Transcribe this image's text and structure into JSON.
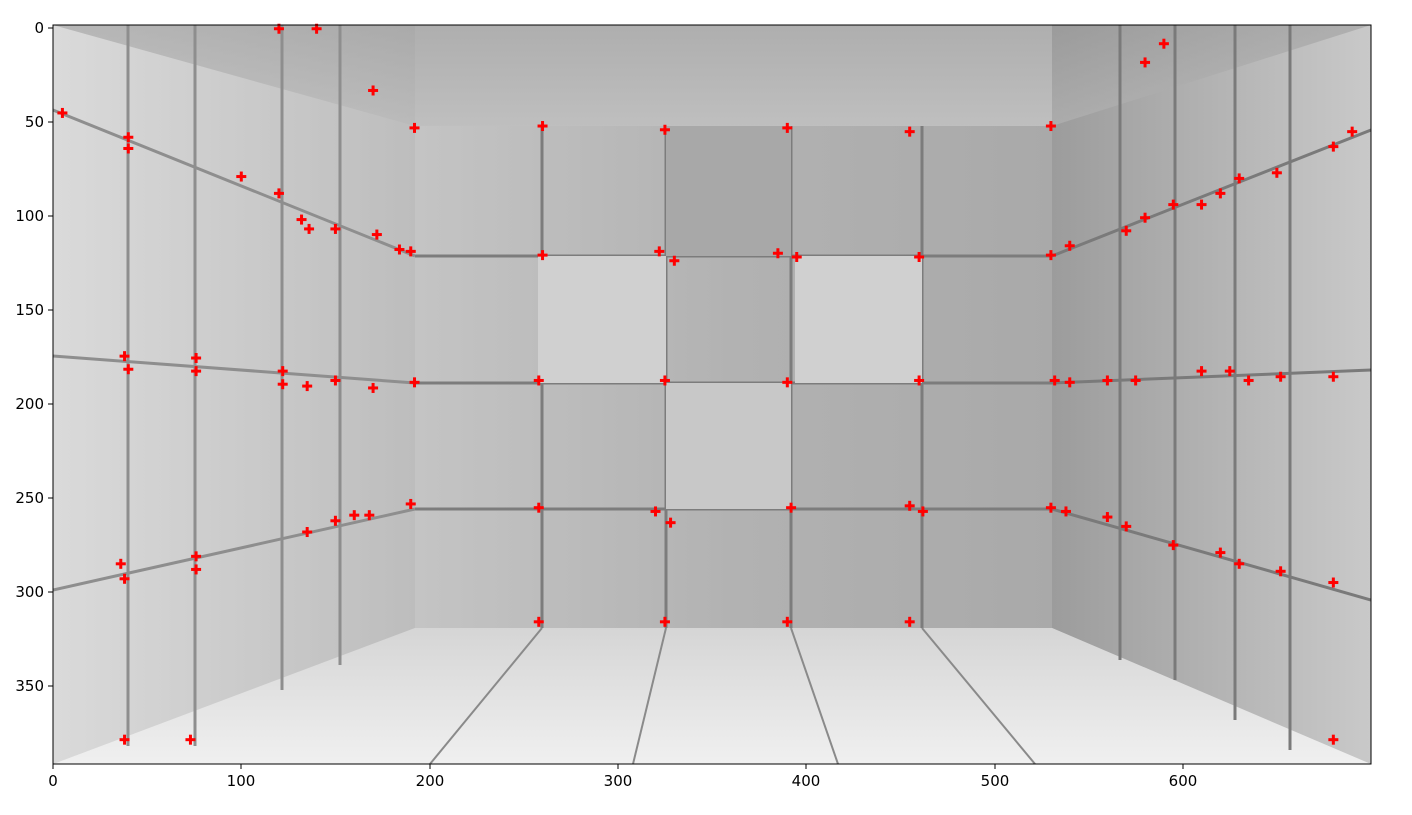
{
  "figure": {
    "x_ticks": [
      "0",
      "100",
      "200",
      "300",
      "400",
      "500",
      "600"
    ],
    "y_ticks": [
      "0",
      "50",
      "100",
      "150",
      "200",
      "250",
      "300",
      "350"
    ],
    "marker_color": "#ff0000",
    "image_subject": "grayscale render of a box-shaped room whose walls are tiled with square panels, with red corner-detection markers"
  },
  "chart_data": {
    "type": "scatter",
    "title": "",
    "xlabel": "",
    "ylabel": "",
    "xlim": [
      0,
      700
    ],
    "ylim": [
      395,
      0
    ],
    "x_ticks": [
      0,
      100,
      200,
      300,
      400,
      500,
      600
    ],
    "y_ticks": [
      0,
      50,
      100,
      150,
      200,
      250,
      300,
      350
    ],
    "series": [
      {
        "color": "#ff0000",
        "points": [
          [
            5,
            47
          ],
          [
            40,
            60
          ],
          [
            40,
            66
          ],
          [
            100,
            81
          ],
          [
            120,
            90
          ],
          [
            132,
            104
          ],
          [
            136,
            109
          ],
          [
            150,
            109
          ],
          [
            172,
            112
          ],
          [
            184,
            120
          ],
          [
            190,
            121
          ],
          [
            38,
            177
          ],
          [
            40,
            184
          ],
          [
            76,
            178
          ],
          [
            76,
            185
          ],
          [
            122,
            185
          ],
          [
            122,
            192
          ],
          [
            135,
            193
          ],
          [
            150,
            190
          ],
          [
            170,
            194
          ],
          [
            192,
            191
          ],
          [
            36,
            288
          ],
          [
            38,
            296
          ],
          [
            76,
            284
          ],
          [
            76,
            291
          ],
          [
            135,
            271
          ],
          [
            150,
            265
          ],
          [
            160,
            262
          ],
          [
            168,
            262
          ],
          [
            190,
            256
          ],
          [
            192,
            55
          ],
          [
            260,
            54
          ],
          [
            325,
            56
          ],
          [
            390,
            55
          ],
          [
            455,
            57
          ],
          [
            530,
            54
          ],
          [
            260,
            123
          ],
          [
            322,
            121
          ],
          [
            330,
            126
          ],
          [
            385,
            122
          ],
          [
            395,
            124
          ],
          [
            460,
            124
          ],
          [
            530,
            123
          ],
          [
            258,
            190
          ],
          [
            325,
            190
          ],
          [
            390,
            191
          ],
          [
            460,
            190
          ],
          [
            532,
            190
          ],
          [
            540,
            191
          ],
          [
            560,
            190
          ],
          [
            575,
            190
          ],
          [
            258,
            258
          ],
          [
            320,
            260
          ],
          [
            328,
            266
          ],
          [
            392,
            258
          ],
          [
            455,
            257
          ],
          [
            462,
            260
          ],
          [
            530,
            258
          ],
          [
            538,
            260
          ],
          [
            258,
            319
          ],
          [
            325,
            319
          ],
          [
            390,
            319
          ],
          [
            455,
            319
          ],
          [
            540,
            118
          ],
          [
            570,
            110
          ],
          [
            580,
            103
          ],
          [
            595,
            96
          ],
          [
            610,
            96
          ],
          [
            620,
            90
          ],
          [
            630,
            82
          ],
          [
            650,
            79
          ],
          [
            680,
            65
          ],
          [
            690,
            57
          ],
          [
            610,
            185
          ],
          [
            625,
            185
          ],
          [
            635,
            190
          ],
          [
            652,
            188
          ],
          [
            680,
            188
          ],
          [
            560,
            263
          ],
          [
            570,
            268
          ],
          [
            595,
            278
          ],
          [
            620,
            282
          ],
          [
            630,
            288
          ],
          [
            652,
            292
          ],
          [
            680,
            298
          ],
          [
            120,
            2
          ],
          [
            140,
            2
          ],
          [
            170,
            35
          ],
          [
            580,
            20
          ],
          [
            590,
            10
          ],
          [
            38,
            382
          ],
          [
            73,
            382
          ],
          [
            680,
            382
          ]
        ]
      }
    ]
  }
}
